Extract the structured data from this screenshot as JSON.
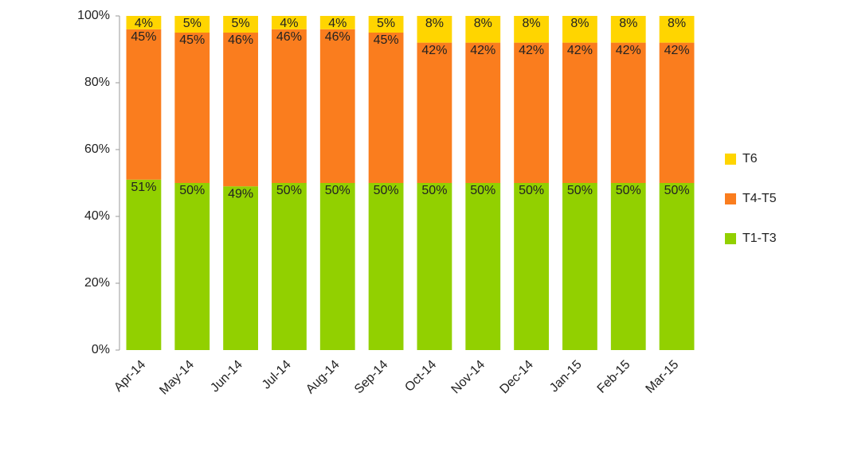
{
  "chart_data": {
    "type": "stacked_bar",
    "categories": [
      "Apr-14",
      "May-14",
      "Jun-14",
      "Jul-14",
      "Aug-14",
      "Sep-14",
      "Oct-14",
      "Nov-14",
      "Dec-14",
      "Jan-15",
      "Feb-15",
      "Mar-15"
    ],
    "series": [
      {
        "name": "T1-T3",
        "color": "#92d000",
        "values": [
          51,
          50,
          49,
          50,
          50,
          50,
          50,
          50,
          50,
          50,
          50,
          50
        ],
        "value_labels": [
          "51%",
          "50%",
          "49%",
          "50%",
          "50%",
          "50%",
          "50%",
          "50%",
          "50%",
          "50%",
          "50%",
          "50%"
        ]
      },
      {
        "name": "T4-T5",
        "color": "#fa7d1e",
        "values": [
          45,
          45,
          46,
          46,
          46,
          45,
          42,
          42,
          42,
          42,
          42,
          42
        ],
        "value_labels": [
          "45%",
          "45%",
          "46%",
          "46%",
          "46%",
          "45%",
          "42%",
          "42%",
          "42%",
          "42%",
          "42%",
          "42%"
        ]
      },
      {
        "name": "T6",
        "color": "#ffd500",
        "values": [
          4,
          5,
          5,
          4,
          4,
          5,
          8,
          8,
          8,
          8,
          8,
          8
        ],
        "value_labels": [
          "4%",
          "5%",
          "5%",
          "4%",
          "4%",
          "5%",
          "8%",
          "8%",
          "8%",
          "8%",
          "8%",
          "8%"
        ]
      }
    ],
    "ylim": [
      0,
      100
    ],
    "yticks": [
      {
        "value": 0,
        "label": "0%"
      },
      {
        "value": 20,
        "label": "20%"
      },
      {
        "value": 40,
        "label": "40%"
      },
      {
        "value": 60,
        "label": "60%"
      },
      {
        "value": 80,
        "label": "80%"
      },
      {
        "value": 100,
        "label": "100%"
      }
    ],
    "legend": "right"
  }
}
